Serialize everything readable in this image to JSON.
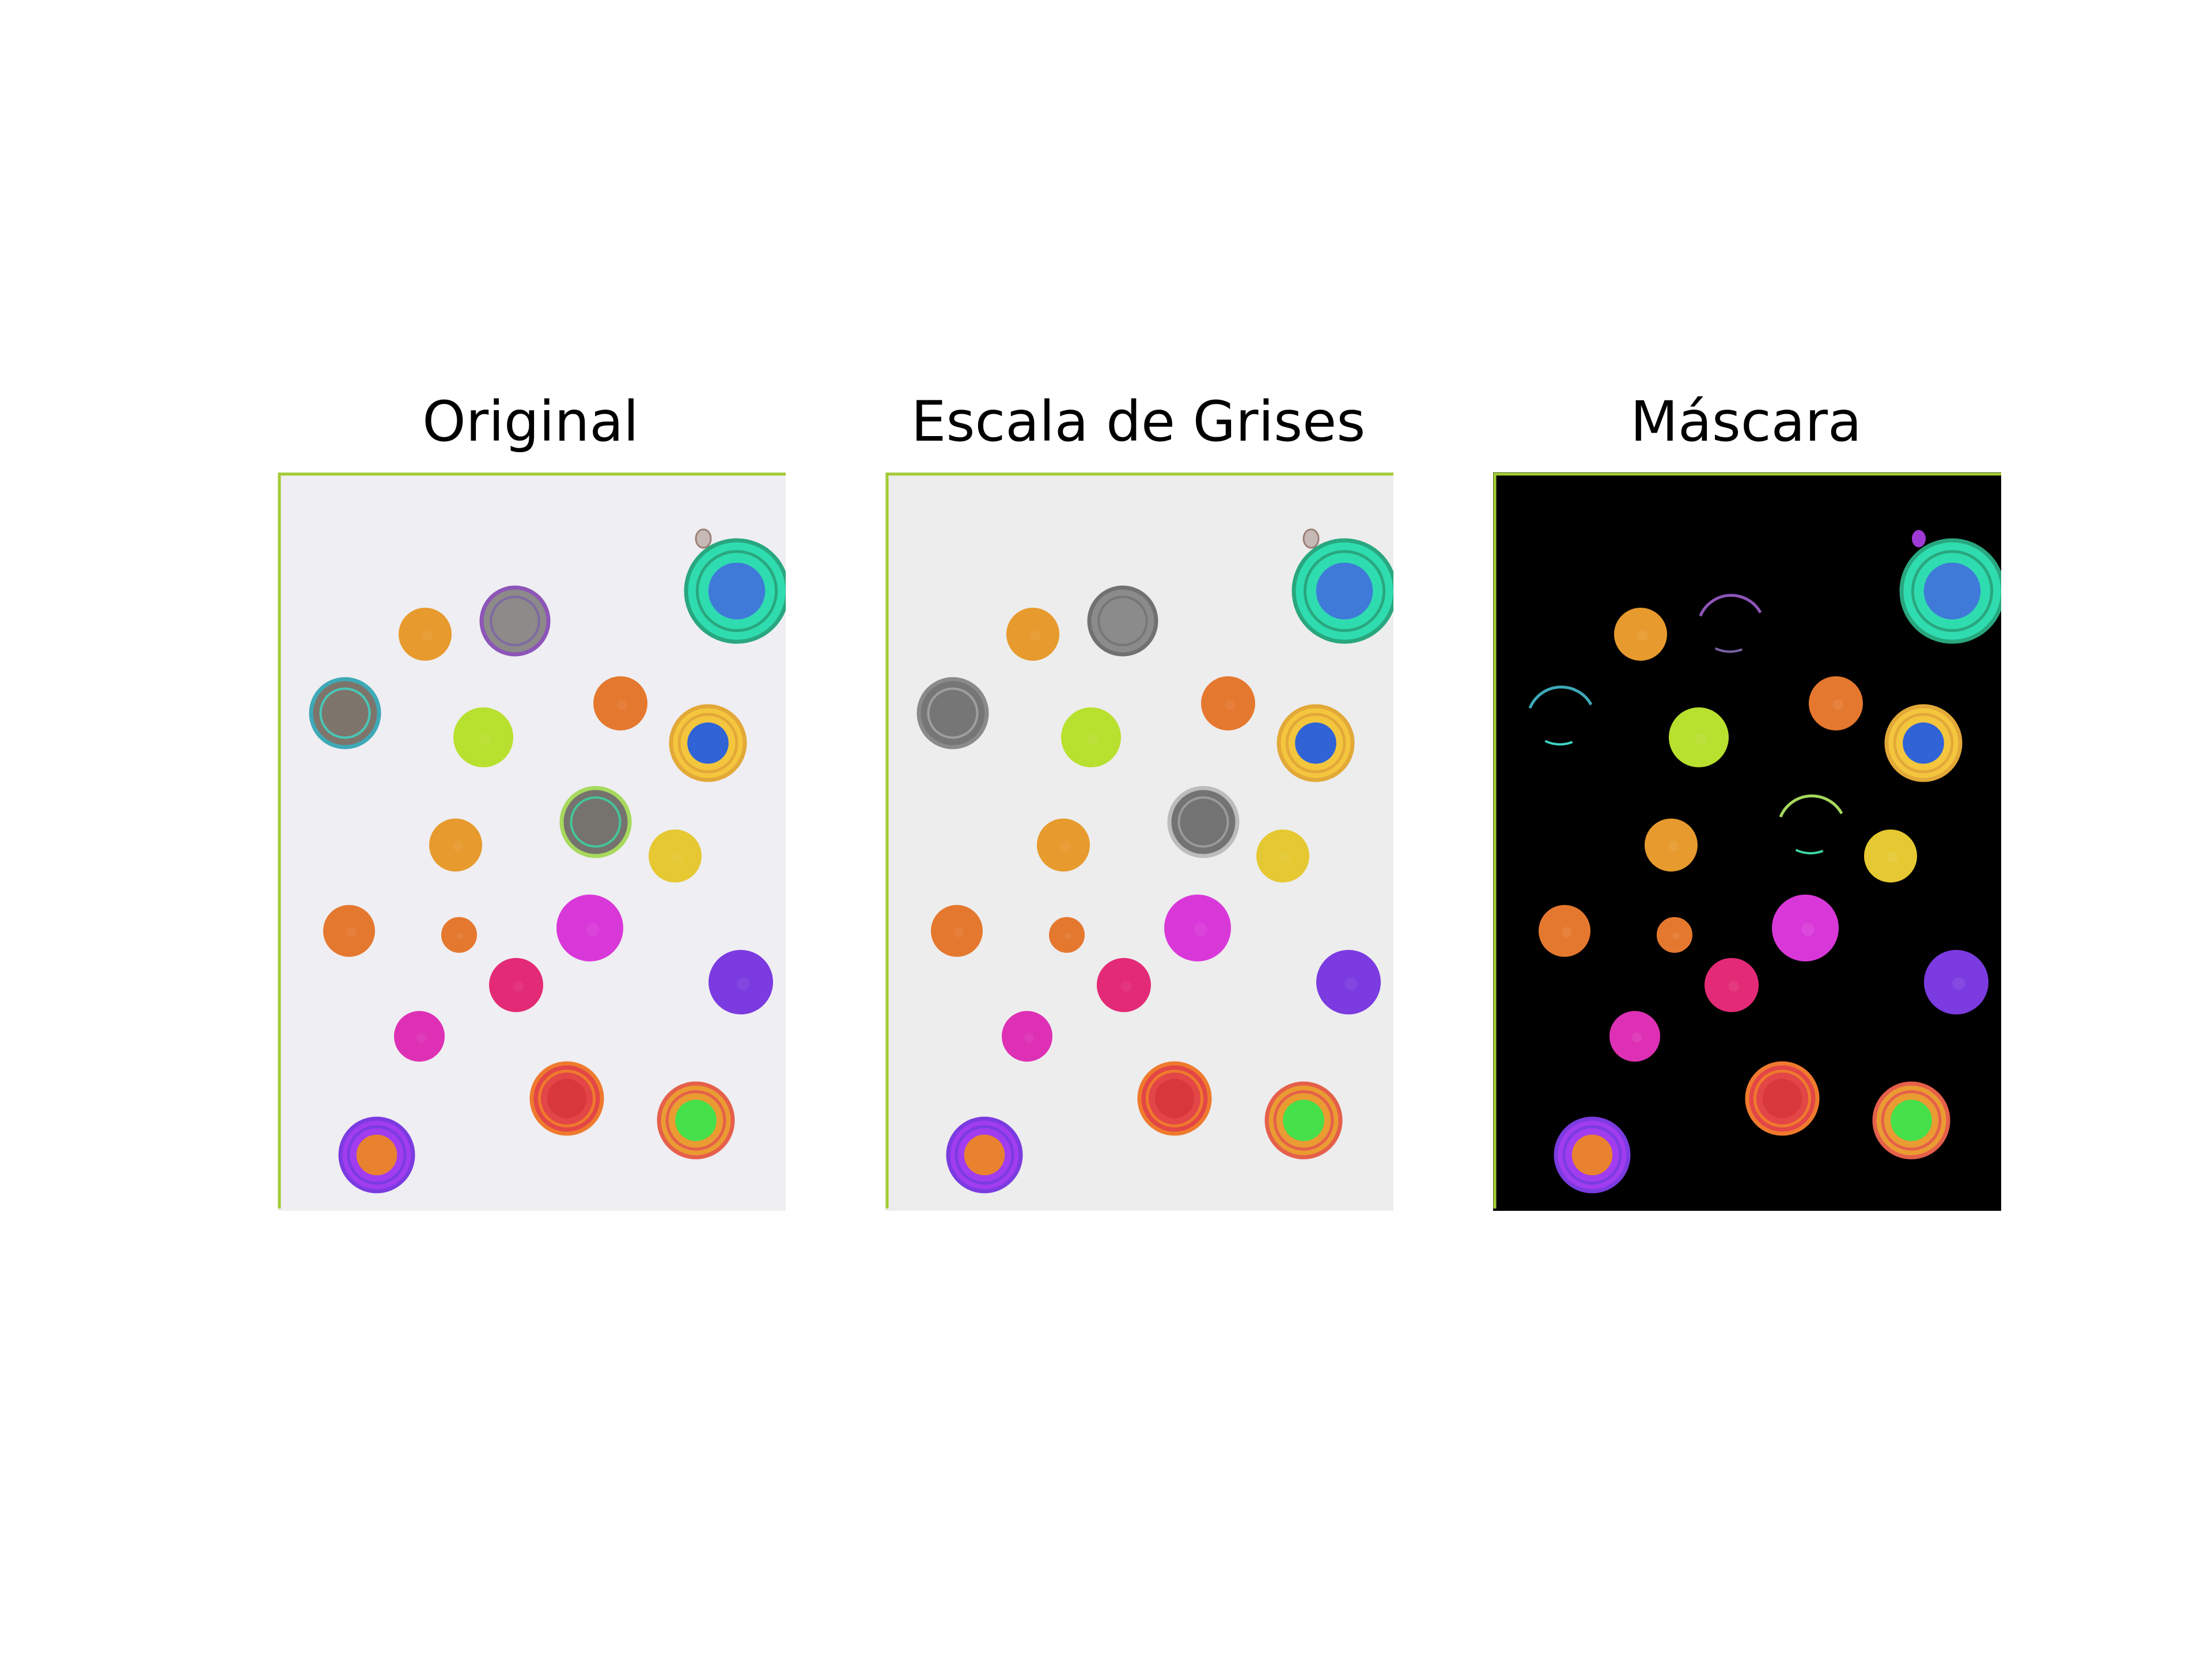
{
  "figure": {
    "panels": [
      {
        "title": "Original",
        "mode": "original",
        "background": "#efeef2",
        "border": "#a3cc33"
      },
      {
        "title": "Escala de Grises",
        "mode": "grayscale",
        "background": "#ededed",
        "border": "#a3cc33"
      },
      {
        "title": "Máscara",
        "mode": "mask",
        "background": "#000000",
        "border": "#a3cc33"
      }
    ]
  },
  "objects": [
    {
      "id": "coin-pendant-top-right",
      "color": "#2fdcb0",
      "accent": "#3f7ad8",
      "ring": "#29a77f",
      "style": "badge",
      "mask_visible": true,
      "gray": false
    },
    {
      "id": "coin-orange-top",
      "color": "#e79a2d",
      "accent": "#e79a2d",
      "ring": "#e79a2d",
      "style": "solid",
      "mask_visible": true,
      "gray": false
    },
    {
      "id": "coin-gray-top",
      "color": "#8d8a89",
      "accent": "#7b63a7",
      "ring": "#8d55b8",
      "style": "ringed",
      "mask_visible": false,
      "gray": true
    },
    {
      "id": "coin-gray-left",
      "color": "#7d756b",
      "accent": "#3ed6c5",
      "ring": "#3ea9b7",
      "style": "ringed",
      "mask_visible": false,
      "gray": true
    },
    {
      "id": "coin-lime",
      "color": "#b8e02e",
      "accent": "#b8e02e",
      "ring": "#b8e02e",
      "style": "solid",
      "mask_visible": true,
      "gray": false
    },
    {
      "id": "coin-orange-small-upper",
      "color": "#e5782f",
      "accent": "#e5782f",
      "ring": "#e5782f",
      "style": "solid",
      "mask_visible": true,
      "gray": false
    },
    {
      "id": "coin-blue-center",
      "color": "#f4c63e",
      "accent": "#2f63d6",
      "ring": "#e2a938",
      "style": "badge",
      "mask_visible": true,
      "gray": false
    },
    {
      "id": "coin-gray-center",
      "color": "#76726d",
      "accent": "#3bd5a2",
      "ring": "#a6d95d",
      "style": "ringed",
      "mask_visible": false,
      "gray": true
    },
    {
      "id": "coin-orange-mid",
      "color": "#e79a2d",
      "accent": "#e79a2d",
      "ring": "#e79a2d",
      "style": "solid",
      "mask_visible": true,
      "gray": false
    },
    {
      "id": "coin-yellow",
      "color": "#e5c832",
      "accent": "#e5c832",
      "ring": "#e5c832",
      "style": "solid",
      "mask_visible": true,
      "gray": false
    },
    {
      "id": "coin-orange-left",
      "color": "#e5782f",
      "accent": "#e5782f",
      "ring": "#e5782f",
      "style": "solid",
      "mask_visible": true,
      "gray": false
    },
    {
      "id": "coin-orange-tiny",
      "color": "#e5782f",
      "accent": "#e5782f",
      "ring": "#e5782f",
      "style": "solid",
      "mask_visible": true,
      "gray": false
    },
    {
      "id": "coin-magenta-large",
      "color": "#d938d9",
      "accent": "#d938d9",
      "ring": "#d938d9",
      "style": "solid",
      "mask_visible": true,
      "gray": false
    },
    {
      "id": "coin-purple",
      "color": "#7b3be0",
      "accent": "#7b3be0",
      "ring": "#7b3be0",
      "style": "solid",
      "mask_visible": true,
      "gray": false
    },
    {
      "id": "coin-pink-center",
      "color": "#e32a76",
      "accent": "#e32a76",
      "ring": "#e32a76",
      "style": "solid",
      "mask_visible": true,
      "gray": false
    },
    {
      "id": "coin-pink-left",
      "color": "#de30b5",
      "accent": "#de30b5",
      "ring": "#de30b5",
      "style": "solid",
      "mask_visible": true,
      "gray": false
    },
    {
      "id": "coin-red",
      "color": "#e34646",
      "accent": "#d9383a",
      "ring": "#ef7a2d",
      "style": "badge",
      "mask_visible": true,
      "gray": false
    },
    {
      "id": "coin-green-ring",
      "color": "#ea9b32",
      "accent": "#45e04a",
      "ring": "#e55f4a",
      "style": "badge",
      "mask_visible": true,
      "gray": false
    },
    {
      "id": "coin-purple-orange",
      "color": "#a13cf0",
      "accent": "#e9822f",
      "ring": "#7b3be0",
      "style": "badge",
      "mask_visible": true,
      "gray": false
    }
  ]
}
